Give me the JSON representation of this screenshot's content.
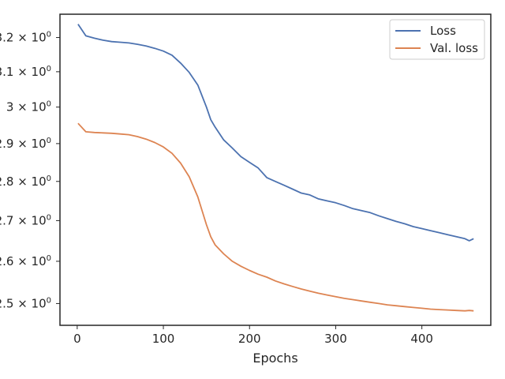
{
  "chart_data": {
    "type": "line",
    "title": "",
    "xlabel": "Epochs",
    "ylabel": "",
    "yscale": "log",
    "xlim": [
      -20,
      480
    ],
    "ylim": [
      2.45,
      3.27
    ],
    "grid": false,
    "legend": {
      "position": "top-right",
      "entries": [
        "Loss",
        "Val. loss"
      ]
    },
    "x_ticks": [
      0,
      100,
      200,
      300,
      400
    ],
    "x_tick_labels": [
      "0",
      "100",
      "200",
      "300",
      "400"
    ],
    "y_ticks": [
      2.5,
      2.6,
      2.7,
      2.8,
      2.9,
      3.0,
      3.1,
      3.2
    ],
    "y_tick_base": [
      "2.5 × 10",
      "2.6 × 10",
      "2.7 × 10",
      "2.8 × 10",
      "2.9 × 10",
      "3 × 10",
      "3.1 × 10",
      "3.2 × 10"
    ],
    "y_tick_exponent": "0",
    "x": [
      1,
      10,
      20,
      30,
      40,
      50,
      60,
      70,
      80,
      90,
      100,
      110,
      120,
      130,
      140,
      150,
      155,
      160,
      170,
      180,
      190,
      200,
      210,
      220,
      230,
      240,
      250,
      260,
      270,
      280,
      290,
      300,
      310,
      320,
      330,
      340,
      350,
      360,
      370,
      380,
      390,
      400,
      410,
      420,
      430,
      440,
      450,
      455,
      460
    ],
    "series": [
      {
        "name": "Loss",
        "color": "#4c72b0",
        "values": [
          3.24,
          3.205,
          3.198,
          3.192,
          3.188,
          3.186,
          3.184,
          3.18,
          3.175,
          3.168,
          3.16,
          3.148,
          3.125,
          3.098,
          3.062,
          3.0,
          2.965,
          2.945,
          2.91,
          2.888,
          2.865,
          2.85,
          2.835,
          2.81,
          2.8,
          2.79,
          2.78,
          2.77,
          2.765,
          2.755,
          2.75,
          2.745,
          2.738,
          2.73,
          2.725,
          2.72,
          2.712,
          2.705,
          2.698,
          2.692,
          2.685,
          2.68,
          2.675,
          2.67,
          2.665,
          2.66,
          2.655,
          2.65,
          2.655
        ]
      },
      {
        "name": "Val. loss",
        "color": "#dd8452",
        "values": [
          2.955,
          2.932,
          2.93,
          2.929,
          2.928,
          2.926,
          2.924,
          2.919,
          2.912,
          2.903,
          2.891,
          2.874,
          2.848,
          2.812,
          2.76,
          2.69,
          2.66,
          2.64,
          2.618,
          2.6,
          2.588,
          2.578,
          2.569,
          2.562,
          2.553,
          2.546,
          2.54,
          2.534,
          2.529,
          2.524,
          2.52,
          2.516,
          2.512,
          2.509,
          2.506,
          2.503,
          2.5,
          2.497,
          2.495,
          2.493,
          2.491,
          2.489,
          2.487,
          2.486,
          2.485,
          2.484,
          2.483,
          2.484,
          2.483
        ]
      }
    ]
  }
}
